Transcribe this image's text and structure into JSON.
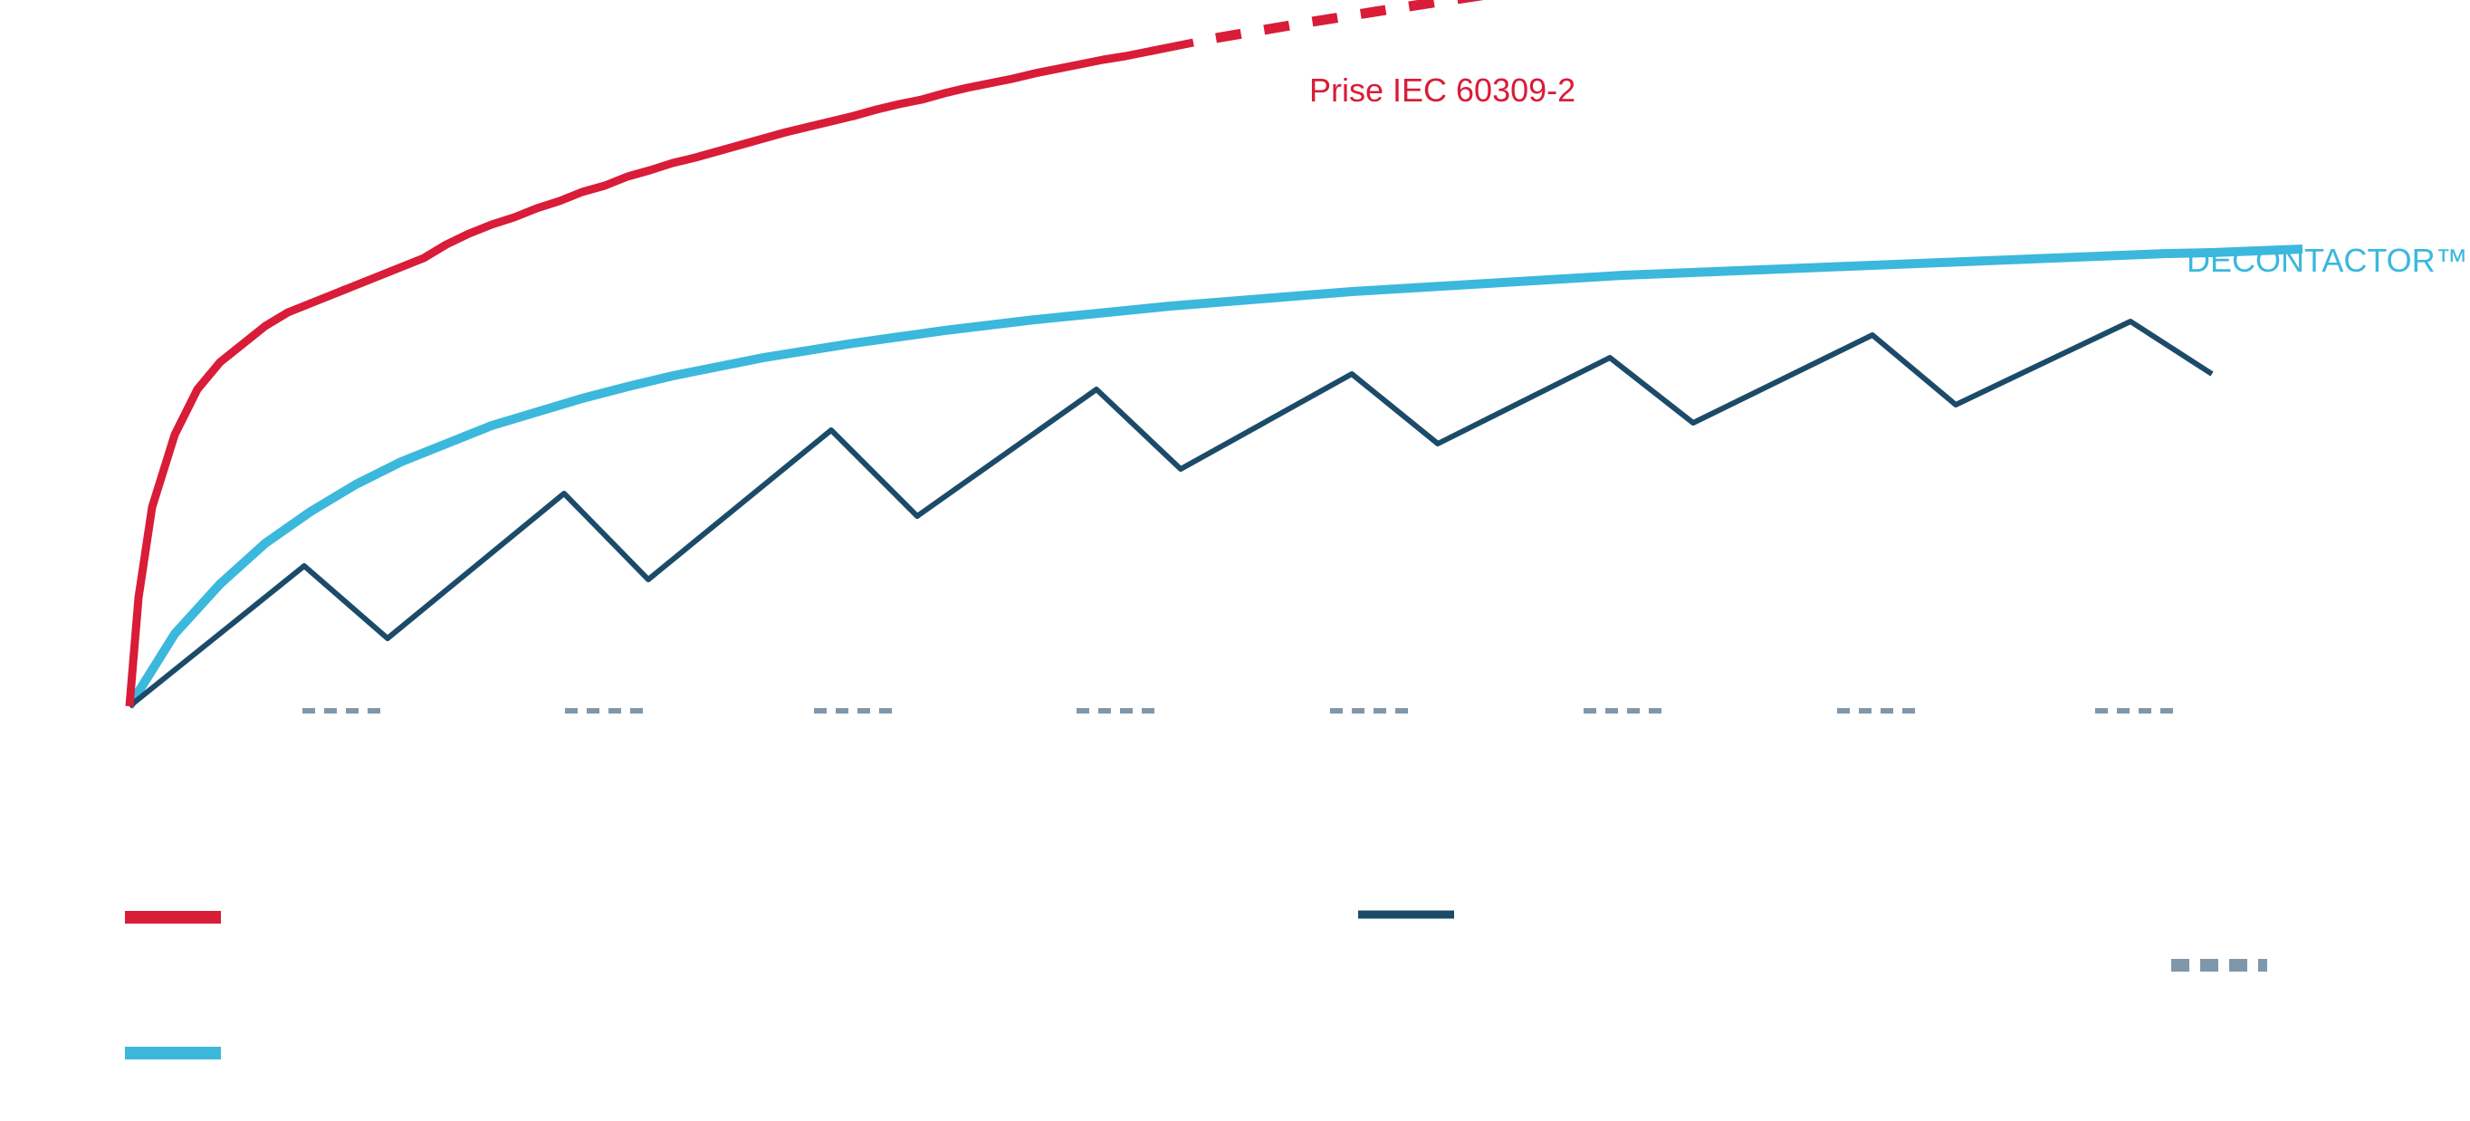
{
  "chart_data": {
    "type": "line",
    "title": "",
    "xlabel": "",
    "ylabel": "",
    "grid": false,
    "colors": {
      "iec": "#d91c38",
      "decontactor": "#3bb8dc",
      "sawtooth": "#1c4b6a",
      "dashes": "#7f97ab"
    },
    "series": [
      {
        "name": "Prise IEC 60309-2",
        "points": [
          [
            0,
            0
          ],
          [
            10,
            12
          ],
          [
            25,
            22
          ],
          [
            50,
            30
          ],
          [
            75,
            35
          ],
          [
            100,
            38
          ],
          [
            125,
            40
          ],
          [
            150,
            42
          ],
          [
            175,
            43.5
          ],
          [
            200,
            44.5
          ],
          [
            225,
            45.5
          ],
          [
            250,
            46.5
          ],
          [
            275,
            47.5
          ],
          [
            300,
            48.5
          ],
          [
            325,
            49.5
          ],
          [
            350,
            51
          ],
          [
            375,
            52.2
          ],
          [
            400,
            53.2
          ],
          [
            425,
            54
          ],
          [
            450,
            55
          ],
          [
            475,
            55.8
          ],
          [
            500,
            56.8
          ],
          [
            525,
            57.5
          ],
          [
            550,
            58.5
          ],
          [
            575,
            59.2
          ],
          [
            600,
            60
          ],
          [
            625,
            60.6
          ],
          [
            650,
            61.3
          ],
          [
            675,
            62
          ],
          [
            700,
            62.7
          ],
          [
            725,
            63.4
          ],
          [
            750,
            64
          ],
          [
            775,
            64.6
          ],
          [
            800,
            65.2
          ],
          [
            825,
            65.9
          ],
          [
            850,
            66.5
          ],
          [
            875,
            67
          ],
          [
            900,
            67.7
          ],
          [
            925,
            68.3
          ],
          [
            950,
            68.8
          ],
          [
            975,
            69.3
          ],
          [
            1000,
            69.9
          ],
          [
            1025,
            70.4
          ],
          [
            1050,
            70.9
          ],
          [
            1075,
            71.4
          ],
          [
            1100,
            71.8
          ],
          [
            1125,
            72.3
          ],
          [
            1150,
            72.8
          ],
          [
            1175,
            73.3
          ],
          [
            1200,
            73.8
          ],
          [
            1225,
            74.2
          ],
          [
            1250,
            74.6
          ],
          [
            1275,
            75.1
          ],
          [
            1300,
            75.5
          ],
          [
            1325,
            75.9
          ],
          [
            1350,
            76.3
          ],
          [
            1375,
            76.7
          ],
          [
            1400,
            77.1
          ],
          [
            1425,
            77.5
          ],
          [
            1450,
            77.9
          ],
          [
            1475,
            78.3
          ],
          [
            1500,
            78.6
          ],
          [
            1525,
            79
          ]
        ],
        "dashed_from_index": 48,
        "dashed_points": [
          [
            1200,
            73.8
          ],
          [
            1300,
            75.5
          ],
          [
            1400,
            77.1
          ],
          [
            1525,
            79
          ]
        ]
      },
      {
        "name": "DECONTACTOR™",
        "points": [
          [
            0,
            0
          ],
          [
            50,
            8
          ],
          [
            100,
            13.5
          ],
          [
            150,
            18
          ],
          [
            200,
            21.5
          ],
          [
            250,
            24.5
          ],
          [
            300,
            27
          ],
          [
            350,
            29
          ],
          [
            400,
            31
          ],
          [
            450,
            32.5
          ],
          [
            500,
            34
          ],
          [
            550,
            35.3
          ],
          [
            600,
            36.5
          ],
          [
            650,
            37.5
          ],
          [
            700,
            38.5
          ],
          [
            750,
            39.3
          ],
          [
            800,
            40.1
          ],
          [
            850,
            40.8
          ],
          [
            900,
            41.5
          ],
          [
            950,
            42.1
          ],
          [
            1000,
            42.7
          ],
          [
            1050,
            43.2
          ],
          [
            1100,
            43.7
          ],
          [
            1150,
            44.2
          ],
          [
            1200,
            44.6
          ],
          [
            1250,
            45
          ],
          [
            1300,
            45.4
          ],
          [
            1350,
            45.8
          ],
          [
            1400,
            46.1
          ],
          [
            1450,
            46.4
          ],
          [
            1500,
            46.7
          ],
          [
            1550,
            47
          ],
          [
            1600,
            47.3
          ],
          [
            1650,
            47.6
          ],
          [
            1700,
            47.8
          ],
          [
            1750,
            48
          ],
          [
            1800,
            48.2
          ],
          [
            1850,
            48.4
          ],
          [
            1900,
            48.6
          ],
          [
            1950,
            48.8
          ],
          [
            2000,
            49
          ],
          [
            2050,
            49.2
          ],
          [
            2100,
            49.4
          ],
          [
            2150,
            49.6
          ],
          [
            2200,
            49.8
          ],
          [
            2250,
            50
          ],
          [
            2300,
            50.1
          ],
          [
            2350,
            50.3
          ],
          [
            2400,
            50.5
          ]
        ]
      },
      {
        "name": "",
        "points": [
          [
            0,
            0
          ],
          [
            193,
            15.5
          ],
          [
            285,
            7.5
          ],
          [
            480,
            23.5
          ],
          [
            573,
            14
          ],
          [
            775,
            30.5
          ],
          [
            870,
            21
          ],
          [
            1068,
            35
          ],
          [
            1161,
            26.2
          ],
          [
            1350,
            36.7
          ],
          [
            1445,
            29
          ],
          [
            1635,
            38.5
          ],
          [
            1727,
            31.3
          ],
          [
            1925,
            41
          ],
          [
            2017,
            33.3
          ],
          [
            2210,
            42.5
          ],
          [
            2300,
            36.7
          ]
        ]
      }
    ],
    "reference_marks": {
      "name": "",
      "style": "dashed",
      "at_x": [
        235,
        525,
        800,
        1090,
        1370,
        1650,
        1930,
        2215
      ]
    }
  }
}
